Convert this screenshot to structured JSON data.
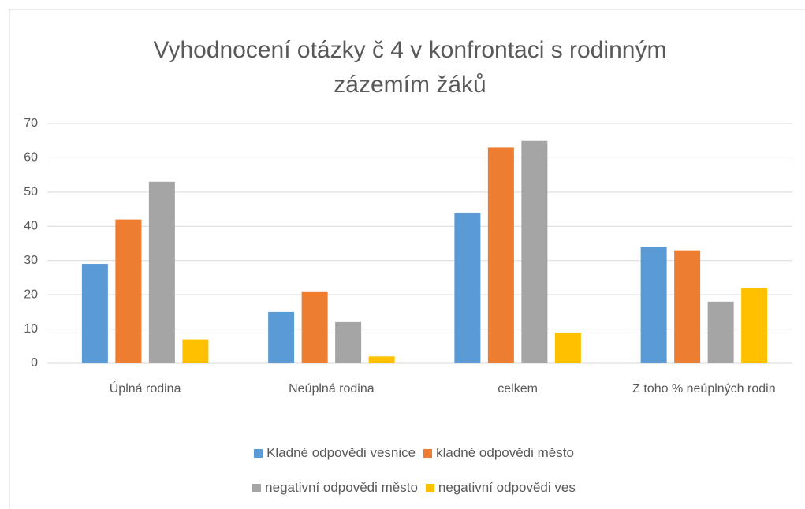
{
  "chart_data": {
    "type": "bar",
    "title": "Vyhodnocení otázky č 4 v konfrontaci s rodinným zázemím žáků",
    "categories": [
      "Úplná rodina",
      "Neúplná rodina",
      "celkem",
      "Z toho % neúplných rodin"
    ],
    "series": [
      {
        "name": "Kladné odpovědi vesnice",
        "color": "#5b9bd5",
        "values": [
          29,
          15,
          44,
          34
        ]
      },
      {
        "name": "kladné odpovědi město",
        "color": "#ed7d31",
        "values": [
          42,
          21,
          63,
          33
        ]
      },
      {
        "name": "negativní odpovědi město",
        "color": "#a5a5a5",
        "values": [
          53,
          12,
          65,
          18
        ]
      },
      {
        "name": "negativní odpovědi ves",
        "color": "#ffc000",
        "values": [
          7,
          2,
          9,
          22
        ]
      }
    ],
    "ylim": [
      0,
      70
    ],
    "yticks": [
      0,
      10,
      20,
      30,
      40,
      50,
      60,
      70
    ],
    "grid": true,
    "legend": "bottom"
  }
}
